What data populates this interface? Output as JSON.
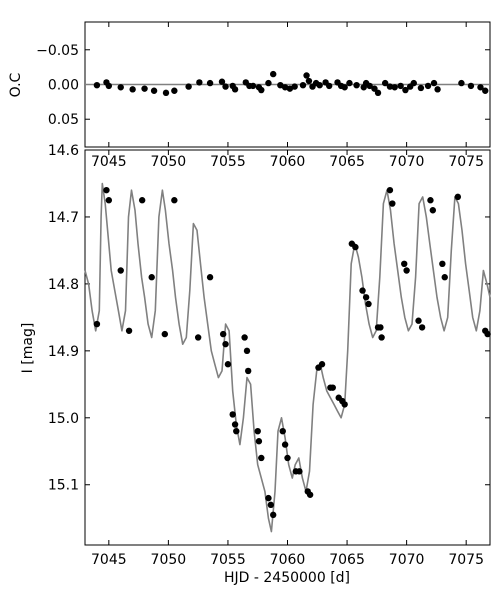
{
  "chart_data": [
    {
      "type": "scatter",
      "panel": "residuals",
      "xlabel": "",
      "ylabel": "O.C",
      "xlim": [
        7043,
        7077
      ],
      "ylim": [
        0.09,
        -0.09
      ],
      "yticks": [
        "−0.05",
        "0.00",
        "0.05"
      ],
      "ytick_values": [
        -0.05,
        0.0,
        0.05
      ],
      "reference_line": 0.0,
      "grid": false,
      "points": [
        [
          7044.0,
          0.001
        ],
        [
          7044.8,
          -0.003
        ],
        [
          7045.0,
          0.002
        ],
        [
          7046.0,
          0.004
        ],
        [
          7047.0,
          0.007
        ],
        [
          7048.0,
          0.006
        ],
        [
          7048.8,
          0.009
        ],
        [
          7049.8,
          0.012
        ],
        [
          7050.5,
          0.009
        ],
        [
          7051.7,
          0.003
        ],
        [
          7052.6,
          -0.003
        ],
        [
          7053.5,
          -0.002
        ],
        [
          7054.5,
          -0.004
        ],
        [
          7054.8,
          0.003
        ],
        [
          7055.4,
          0.002
        ],
        [
          7055.6,
          0.007
        ],
        [
          7056.5,
          -0.003
        ],
        [
          7056.8,
          0.002
        ],
        [
          7057.1,
          0.002
        ],
        [
          7057.6,
          0.004
        ],
        [
          7057.8,
          0.008
        ],
        [
          7058.4,
          -0.002
        ],
        [
          7058.8,
          -0.015
        ],
        [
          7059.4,
          0.001
        ],
        [
          7059.8,
          0.004
        ],
        [
          7060.2,
          0.006
        ],
        [
          7060.6,
          0.003
        ],
        [
          7061.3,
          0.001
        ],
        [
          7061.6,
          -0.013
        ],
        [
          7061.8,
          -0.005
        ],
        [
          7062.1,
          0.003
        ],
        [
          7062.4,
          -0.002
        ],
        [
          7062.7,
          0.001
        ],
        [
          7063.2,
          -0.003
        ],
        [
          7063.5,
          0.002
        ],
        [
          7064.2,
          -0.003
        ],
        [
          7064.5,
          0.002
        ],
        [
          7064.8,
          0.004
        ],
        [
          7065.2,
          -0.002
        ],
        [
          7065.8,
          0.001
        ],
        [
          7066.4,
          0.004
        ],
        [
          7066.6,
          -0.002
        ],
        [
          7066.9,
          0.002
        ],
        [
          7067.3,
          0.006
        ],
        [
          7067.6,
          0.012
        ],
        [
          7068.2,
          -0.002
        ],
        [
          7068.6,
          0.003
        ],
        [
          7069.0,
          0.004
        ],
        [
          7069.5,
          0.002
        ],
        [
          7069.9,
          0.008
        ],
        [
          7070.3,
          0.003
        ],
        [
          7070.6,
          -0.002
        ],
        [
          7071.2,
          0.005
        ],
        [
          7071.8,
          0.002
        ],
        [
          7072.3,
          -0.002
        ],
        [
          7072.6,
          0.007
        ],
        [
          7074.6,
          -0.002
        ],
        [
          7075.4,
          0.002
        ],
        [
          7076.2,
          0.004
        ],
        [
          7076.6,
          0.009
        ]
      ]
    },
    {
      "type": "scatter",
      "panel": "light-curve",
      "xlabel": "HJD - 2450000 [d]",
      "ylabel": "I [mag]",
      "xlim": [
        7043,
        7077
      ],
      "ylim": [
        15.19,
        14.6
      ],
      "xticks": [
        7045,
        7050,
        7055,
        7060,
        7065,
        7070,
        7075
      ],
      "yticks": [
        "14.6",
        "14.7",
        "14.8",
        "14.9",
        "15.0",
        "15.1"
      ],
      "ytick_values": [
        14.6,
        14.7,
        14.8,
        14.9,
        15.0,
        15.1
      ],
      "grid": false,
      "series": [
        {
          "kind": "model-line",
          "color": "#808080",
          "x": [
            7043.0,
            7043.3,
            7043.6,
            7043.9,
            7044.2,
            7044.35,
            7044.45,
            7044.7,
            7044.95,
            7045.2,
            7045.5,
            7045.8,
            7046.1,
            7046.4,
            7046.65,
            7046.9,
            7047.2,
            7047.45,
            7047.75,
            7048.0,
            7048.3,
            7048.6,
            7048.9,
            7049.2,
            7049.5,
            7049.75,
            7050.05,
            7050.35,
            7050.6,
            7050.9,
            7051.2,
            7051.5,
            7051.8,
            7052.1,
            7052.4,
            7052.7,
            7053.0,
            7053.3,
            7053.6,
            7053.9,
            7054.2,
            7054.5,
            7054.8,
            7055.1,
            7055.4,
            7055.7,
            7056.0,
            7056.3,
            7056.6,
            7056.9,
            7057.2,
            7057.5,
            7057.8,
            7058.1,
            7058.4,
            7058.65,
            7058.95,
            7059.2,
            7059.5,
            7059.8,
            7060.1,
            7060.4,
            7060.65,
            7060.95,
            7061.25,
            7061.55,
            7061.85,
            7062.15,
            7062.45,
            7062.75,
            7063.0,
            7063.3,
            7063.6,
            7063.9,
            7064.2,
            7064.5,
            7064.8,
            7065.05,
            7065.35,
            7065.65,
            7065.95,
            7066.25,
            7066.55,
            7066.85,
            7067.15,
            7067.45,
            7067.75,
            7068.05,
            7068.35,
            7068.65,
            7068.95,
            7069.25,
            7069.55,
            7069.85,
            7070.15,
            7070.45,
            7070.75,
            7071.05,
            7071.35,
            7071.65,
            7071.95,
            7072.25,
            7072.55,
            7072.85,
            7073.15,
            7073.45,
            7073.75,
            7074.05,
            7074.35,
            7074.65,
            7074.95,
            7075.25,
            7075.55,
            7075.85,
            7076.15,
            7076.45,
            7076.75,
            7077.0
          ],
          "y": [
            14.78,
            14.8,
            14.84,
            14.87,
            14.84,
            14.7,
            14.65,
            14.68,
            14.73,
            14.78,
            14.81,
            14.84,
            14.87,
            14.84,
            14.7,
            14.66,
            14.69,
            14.74,
            14.79,
            14.82,
            14.86,
            14.88,
            14.84,
            14.7,
            14.66,
            14.69,
            14.74,
            14.78,
            14.82,
            14.86,
            14.89,
            14.88,
            14.81,
            14.71,
            14.72,
            14.77,
            14.82,
            14.86,
            14.9,
            14.92,
            14.94,
            14.93,
            14.86,
            14.87,
            14.96,
            15.01,
            15.04,
            15.0,
            14.94,
            14.95,
            15.02,
            15.07,
            15.09,
            15.11,
            15.15,
            15.17,
            15.11,
            15.02,
            15.0,
            15.03,
            15.07,
            15.09,
            15.07,
            15.06,
            15.09,
            15.11,
            15.08,
            14.98,
            14.93,
            14.92,
            14.94,
            14.96,
            14.97,
            14.98,
            14.99,
            15.0,
            14.98,
            14.9,
            14.77,
            14.74,
            14.76,
            14.79,
            14.83,
            14.86,
            14.88,
            14.87,
            14.79,
            14.68,
            14.66,
            14.69,
            14.74,
            14.78,
            14.82,
            14.85,
            14.87,
            14.86,
            14.79,
            14.68,
            14.67,
            14.7,
            14.74,
            14.78,
            14.82,
            14.85,
            14.87,
            14.85,
            14.75,
            14.67,
            14.68,
            14.72,
            14.77,
            14.81,
            14.85,
            14.87,
            14.84,
            14.78,
            14.8,
            14.82
          ]
        },
        {
          "kind": "observations",
          "color": "#000000",
          "points": [
            [
              7044.0,
              14.86
            ],
            [
              7044.8,
              14.66
            ],
            [
              7045.0,
              14.675
            ],
            [
              7046.0,
              14.78
            ],
            [
              7046.7,
              14.87
            ],
            [
              7047.8,
              14.675
            ],
            [
              7048.6,
              14.79
            ],
            [
              7049.7,
              14.875
            ],
            [
              7050.5,
              14.675
            ],
            [
              7052.5,
              14.88
            ],
            [
              7053.5,
              14.79
            ],
            [
              7054.6,
              14.875
            ],
            [
              7054.8,
              14.89
            ],
            [
              7055.0,
              14.92
            ],
            [
              7055.4,
              14.995
            ],
            [
              7055.6,
              15.01
            ],
            [
              7055.7,
              15.02
            ],
            [
              7056.4,
              14.88
            ],
            [
              7056.6,
              14.9
            ],
            [
              7056.7,
              14.93
            ],
            [
              7057.5,
              15.02
            ],
            [
              7057.6,
              15.035
            ],
            [
              7057.8,
              15.06
            ],
            [
              7058.4,
              15.12
            ],
            [
              7058.6,
              15.13
            ],
            [
              7058.8,
              15.145
            ],
            [
              7059.6,
              15.02
            ],
            [
              7059.8,
              15.04
            ],
            [
              7060.0,
              15.06
            ],
            [
              7060.7,
              15.08
            ],
            [
              7061.0,
              15.08
            ],
            [
              7061.7,
              15.11
            ],
            [
              7061.9,
              15.115
            ],
            [
              7062.6,
              14.925
            ],
            [
              7062.9,
              14.92
            ],
            [
              7063.6,
              14.955
            ],
            [
              7063.8,
              14.955
            ],
            [
              7064.3,
              14.97
            ],
            [
              7064.6,
              14.975
            ],
            [
              7064.8,
              14.98
            ],
            [
              7065.4,
              14.74
            ],
            [
              7065.7,
              14.745
            ],
            [
              7066.3,
              14.81
            ],
            [
              7066.6,
              14.82
            ],
            [
              7066.8,
              14.83
            ],
            [
              7067.6,
              14.865
            ],
            [
              7067.8,
              14.865
            ],
            [
              7067.9,
              14.88
            ],
            [
              7068.6,
              14.66
            ],
            [
              7068.8,
              14.68
            ],
            [
              7069.8,
              14.77
            ],
            [
              7070.0,
              14.78
            ],
            [
              7071.0,
              14.855
            ],
            [
              7071.3,
              14.865
            ],
            [
              7072.0,
              14.675
            ],
            [
              7072.2,
              14.69
            ],
            [
              7073.0,
              14.77
            ],
            [
              7073.2,
              14.79
            ],
            [
              7074.3,
              14.67
            ],
            [
              7076.6,
              14.87
            ],
            [
              7076.8,
              14.875
            ]
          ]
        }
      ]
    }
  ]
}
